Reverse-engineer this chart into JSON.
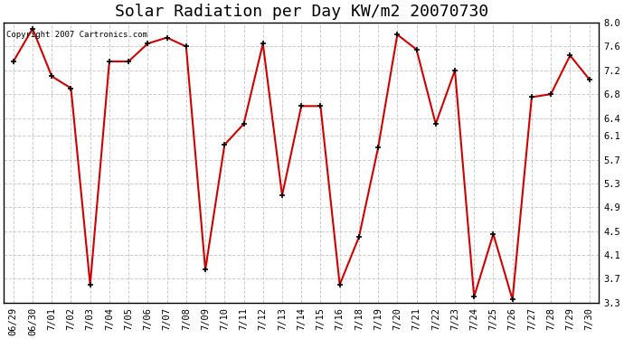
{
  "title": "Solar Radiation per Day KW/m2 20070730",
  "copyright_text": "Copyright 2007 Cartronics.com",
  "dates": [
    "06/29",
    "06/30",
    "7/01",
    "7/02",
    "7/03",
    "7/04",
    "7/05",
    "7/06",
    "7/07",
    "7/08",
    "7/09",
    "7/10",
    "7/11",
    "7/12",
    "7/13",
    "7/14",
    "7/15",
    "7/16",
    "7/18",
    "7/19",
    "7/20",
    "7/21",
    "7/22",
    "7/23",
    "7/24",
    "7/25",
    "7/26",
    "7/27",
    "7/28",
    "7/29",
    "7/30"
  ],
  "values": [
    7.35,
    7.9,
    7.1,
    6.9,
    3.6,
    7.35,
    7.35,
    7.65,
    7.75,
    7.6,
    3.85,
    5.95,
    6.3,
    7.65,
    5.1,
    6.6,
    6.6,
    3.6,
    4.4,
    5.9,
    7.8,
    7.55,
    6.3,
    7.2,
    3.4,
    4.45,
    3.35,
    6.75,
    6.8,
    7.45,
    7.05
  ],
  "ylim": [
    3.3,
    8.0
  ],
  "yticks": [
    3.3,
    3.7,
    4.1,
    4.5,
    4.9,
    5.3,
    5.7,
    6.1,
    6.4,
    6.8,
    7.2,
    7.6,
    8.0
  ],
  "line_color": "#CC0000",
  "marker_color": "#000000",
  "bg_color": "#FFFFFF",
  "plot_bg_color": "#FFFFFF",
  "grid_color": "#CCCCCC",
  "title_fontsize": 13,
  "tick_fontsize": 7.5
}
